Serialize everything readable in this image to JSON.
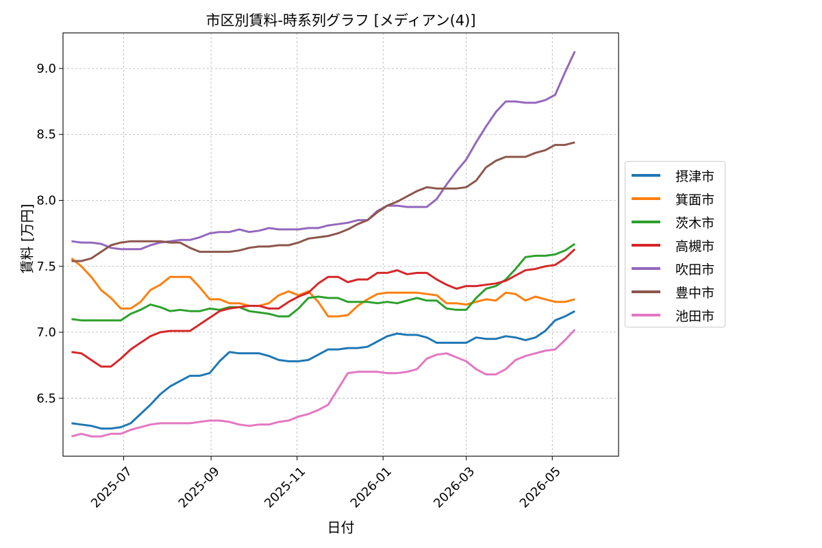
{
  "chart_data": {
    "type": "line",
    "title": "市区別賃料-時系列グラフ [メディアン(4)]",
    "xlabel": "日付",
    "ylabel": "賃料 [万円]",
    "x_start": "2025-05-25",
    "x_interval_days": 7,
    "xlim": [
      "2025-05-19",
      "2026-06-17"
    ],
    "ylim": [
      6.06,
      9.27
    ],
    "xticks": [
      "2025-07",
      "2025-09",
      "2025-11",
      "2026-01",
      "2026-03",
      "2026-05"
    ],
    "yticks": [
      "6.5",
      "7.0",
      "7.5",
      "8.0",
      "8.5",
      "9.0"
    ],
    "grid": true,
    "legend_position": "right",
    "series": [
      {
        "name": "摂津市",
        "color": "#1f77b4",
        "values": [
          6.31,
          6.3,
          6.29,
          6.27,
          6.27,
          6.28,
          6.31,
          6.38,
          6.45,
          6.53,
          6.59,
          6.63,
          6.67,
          6.67,
          6.69,
          6.78,
          6.85,
          6.84,
          6.84,
          6.84,
          6.82,
          6.79,
          6.78,
          6.78,
          6.79,
          6.83,
          6.87,
          6.87,
          6.88,
          6.88,
          6.89,
          6.93,
          6.97,
          6.99,
          6.98,
          6.98,
          6.96,
          6.92,
          6.92,
          6.92,
          6.92,
          6.96,
          6.95,
          6.95,
          6.97,
          6.96,
          6.94,
          6.96,
          7.01,
          7.09,
          7.12,
          7.16
        ]
      },
      {
        "name": "箕面市",
        "color": "#ff7f0e",
        "values": [
          7.56,
          7.5,
          7.42,
          7.32,
          7.26,
          7.18,
          7.18,
          7.23,
          7.32,
          7.36,
          7.42,
          7.42,
          7.42,
          7.34,
          7.25,
          7.25,
          7.22,
          7.22,
          7.2,
          7.2,
          7.22,
          7.28,
          7.31,
          7.28,
          7.31,
          7.23,
          7.12,
          7.12,
          7.13,
          7.2,
          7.25,
          7.29,
          7.3,
          7.3,
          7.3,
          7.3,
          7.29,
          7.28,
          7.22,
          7.22,
          7.21,
          7.23,
          7.25,
          7.24,
          7.3,
          7.29,
          7.24,
          7.27,
          7.25,
          7.23,
          7.23,
          7.25
        ]
      },
      {
        "name": "茨木市",
        "color": "#2ca02c",
        "values": [
          7.1,
          7.09,
          7.09,
          7.09,
          7.09,
          7.09,
          7.14,
          7.17,
          7.21,
          7.19,
          7.16,
          7.17,
          7.16,
          7.16,
          7.18,
          7.17,
          7.19,
          7.19,
          7.16,
          7.15,
          7.14,
          7.12,
          7.12,
          7.18,
          7.26,
          7.27,
          7.26,
          7.26,
          7.23,
          7.23,
          7.23,
          7.22,
          7.23,
          7.22,
          7.24,
          7.26,
          7.24,
          7.24,
          7.18,
          7.17,
          7.17,
          7.26,
          7.33,
          7.35,
          7.4,
          7.48,
          7.57,
          7.58,
          7.58,
          7.59,
          7.62,
          7.67
        ]
      },
      {
        "name": "高槻市",
        "color": "#d62728",
        "values": [
          6.85,
          6.84,
          6.79,
          6.74,
          6.74,
          6.8,
          6.87,
          6.92,
          6.97,
          7.0,
          7.01,
          7.01,
          7.01,
          7.06,
          7.11,
          7.16,
          7.18,
          7.19,
          7.2,
          7.2,
          7.18,
          7.18,
          7.23,
          7.27,
          7.3,
          7.37,
          7.42,
          7.42,
          7.38,
          7.4,
          7.4,
          7.45,
          7.45,
          7.47,
          7.44,
          7.45,
          7.45,
          7.4,
          7.36,
          7.33,
          7.35,
          7.35,
          7.36,
          7.37,
          7.39,
          7.43,
          7.47,
          7.48,
          7.5,
          7.51,
          7.56,
          7.63
        ]
      },
      {
        "name": "吹田市",
        "color": "#9467bd",
        "values": [
          7.69,
          7.68,
          7.68,
          7.67,
          7.64,
          7.63,
          7.63,
          7.63,
          7.66,
          7.68,
          7.69,
          7.7,
          7.7,
          7.72,
          7.75,
          7.76,
          7.76,
          7.78,
          7.76,
          7.77,
          7.79,
          7.78,
          7.78,
          7.78,
          7.79,
          7.79,
          7.81,
          7.82,
          7.83,
          7.85,
          7.85,
          7.92,
          7.96,
          7.96,
          7.95,
          7.95,
          7.95,
          8.01,
          8.12,
          8.22,
          8.31,
          8.44,
          8.56,
          8.67,
          8.75,
          8.75,
          8.74,
          8.74,
          8.76,
          8.8,
          8.97,
          9.13
        ]
      },
      {
        "name": "豊中市",
        "color": "#8c564b",
        "values": [
          7.54,
          7.54,
          7.56,
          7.61,
          7.66,
          7.68,
          7.69,
          7.69,
          7.69,
          7.69,
          7.68,
          7.68,
          7.64,
          7.61,
          7.61,
          7.61,
          7.61,
          7.62,
          7.64,
          7.65,
          7.65,
          7.66,
          7.66,
          7.68,
          7.71,
          7.72,
          7.73,
          7.75,
          7.78,
          7.82,
          7.85,
          7.91,
          7.96,
          7.99,
          8.03,
          8.07,
          8.1,
          8.09,
          8.09,
          8.09,
          8.1,
          8.15,
          8.25,
          8.3,
          8.33,
          8.33,
          8.33,
          8.36,
          8.38,
          8.42,
          8.42,
          8.44
        ]
      },
      {
        "name": "池田市",
        "color": "#e377c2",
        "values": [
          6.21,
          6.23,
          6.21,
          6.21,
          6.23,
          6.23,
          6.26,
          6.28,
          6.3,
          6.31,
          6.31,
          6.31,
          6.31,
          6.32,
          6.33,
          6.33,
          6.32,
          6.3,
          6.29,
          6.3,
          6.3,
          6.32,
          6.33,
          6.36,
          6.38,
          6.41,
          6.45,
          6.57,
          6.69,
          6.7,
          6.7,
          6.7,
          6.69,
          6.69,
          6.7,
          6.72,
          6.8,
          6.83,
          6.84,
          6.81,
          6.78,
          6.72,
          6.68,
          6.68,
          6.72,
          6.79,
          6.82,
          6.84,
          6.86,
          6.87,
          6.94,
          7.02
        ]
      }
    ]
  }
}
